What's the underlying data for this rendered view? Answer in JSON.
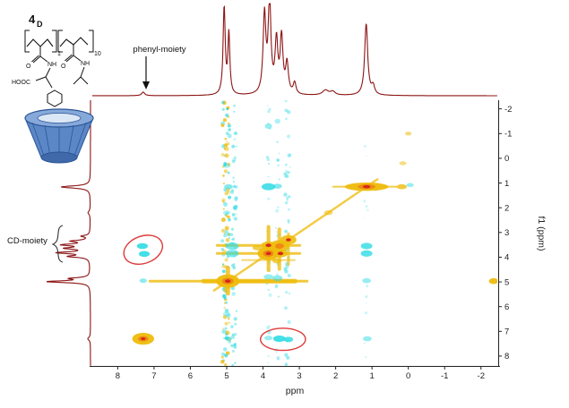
{
  "annotations": {
    "phenyl_label": "phenyl-moiety",
    "cd_label": "CD-moiety"
  },
  "structure": {
    "compound_number": "4",
    "compound_sub": "D",
    "bracket_sub_1": "1",
    "bracket_sub_2": "10",
    "hooc": "HOOC",
    "o1": "O",
    "nh1": "NH",
    "o2": "O",
    "nh2": "NH"
  },
  "colors": {
    "trace": "#8c1414",
    "axis": "#222222",
    "cyan": "#2fdbe4",
    "yellow": "#eebc0c",
    "orange": "#ef8a10",
    "red": "#d42a1c",
    "highlight": "#dd3b3b",
    "annotation": "#111111",
    "cd_fill": "#5b87c7",
    "cd_dark": "#2c5698",
    "cd_light": "#86a9da",
    "cd_bottom": "#3f69a8"
  },
  "chart_data": {
    "type": "heatmap",
    "subtype": "2D NOESY NMR spectrum with 1D proton projections",
    "x_label": "ppm",
    "y_label": "f1 (ppm)",
    "x_ticks": [
      8,
      7,
      6,
      5,
      4,
      3,
      2,
      1,
      0,
      -1,
      -2
    ],
    "y_ticks": [
      -2,
      -1,
      0,
      1,
      2,
      3,
      4,
      5,
      6,
      7,
      8
    ],
    "x_range": [
      8.7,
      -2.45
    ],
    "y_range": [
      -2.35,
      8.4
    ],
    "top_spectrum_peaks": [
      [
        7.3,
        0.05,
        0.05
      ],
      [
        5.07,
        1.22,
        0.035
      ],
      [
        4.94,
        0.85,
        0.032
      ],
      [
        3.96,
        1.1,
        0.045
      ],
      [
        3.82,
        1.28,
        0.045
      ],
      [
        3.63,
        0.72,
        0.045
      ],
      [
        3.49,
        0.78,
        0.045
      ],
      [
        3.34,
        0.42,
        0.045
      ],
      [
        3.13,
        0.16,
        0.045
      ],
      [
        2.28,
        0.07,
        0.1
      ],
      [
        2.08,
        0.05,
        0.08
      ],
      [
        1.16,
        1.0,
        0.05
      ],
      [
        0.97,
        0.12,
        0.05
      ]
    ],
    "left_spectrum_peaks": [
      [
        7.3,
        0.06,
        0.07
      ],
      [
        4.99,
        0.95,
        0.045
      ],
      [
        4.86,
        0.4,
        0.04
      ],
      [
        3.97,
        0.45,
        0.045
      ],
      [
        3.82,
        0.7,
        0.045
      ],
      [
        3.64,
        0.5,
        0.045
      ],
      [
        3.5,
        0.58,
        0.045
      ],
      [
        3.35,
        0.38,
        0.045
      ],
      [
        3.15,
        0.18,
        0.04
      ],
      [
        2.2,
        0.05,
        0.08
      ],
      [
        1.16,
        0.65,
        0.055
      ]
    ],
    "diagonal": {
      "from": 0.85,
      "to": 5.35,
      "width": 2.5,
      "color": "yellow",
      "alpha": 0.75
    },
    "noise_columns": [
      {
        "x": 5.02,
        "spread": 0.1,
        "count": 120,
        "colors": [
          "cyan",
          "yellow"
        ],
        "alpha": 0.85,
        "size": 2.2
      },
      {
        "x": 4.8,
        "spread": 0.07,
        "count": 55,
        "colors": [
          "cyan"
        ],
        "alpha": 0.6,
        "size": 2
      },
      {
        "x": 3.32,
        "spread": 0.07,
        "count": 42,
        "colors": [
          "cyan"
        ],
        "alpha": 0.55,
        "size": 2
      },
      {
        "x": 3.6,
        "spread": 0.05,
        "count": 22,
        "colors": [
          "cyan"
        ],
        "alpha": 0.45,
        "size": 1.8
      },
      {
        "x": 3.85,
        "spread": 0.05,
        "count": 22,
        "colors": [
          "cyan"
        ],
        "alpha": 0.45,
        "size": 1.8
      },
      {
        "x": 1.16,
        "spread": 0.05,
        "count": 12,
        "colors": [
          "cyan"
        ],
        "alpha": 0.3,
        "size": 1.6
      }
    ],
    "streaks": [
      {
        "dir": "h",
        "at": 4.97,
        "from": 7.15,
        "to": 2.75,
        "half": 0.055,
        "color": "yellow",
        "alpha": 0.8
      },
      {
        "dir": "h",
        "at": 4.97,
        "from": 5.7,
        "to": 3.05,
        "half": 0.09,
        "color": "yellow",
        "alpha": 0.85
      },
      {
        "dir": "h",
        "at": 3.52,
        "from": 5.3,
        "to": 2.95,
        "half": 0.055,
        "color": "yellow",
        "alpha": 0.8
      },
      {
        "dir": "h",
        "at": 3.85,
        "from": 5.3,
        "to": 2.95,
        "half": 0.055,
        "color": "yellow",
        "alpha": 0.8
      },
      {
        "dir": "h",
        "at": 4.12,
        "from": 4.6,
        "to": 3.1,
        "half": 0.04,
        "color": "yellow",
        "alpha": 0.55
      },
      {
        "dir": "h",
        "at": 1.15,
        "from": 2.1,
        "to": 0.3,
        "half": 0.04,
        "color": "yellow",
        "alpha": 0.7
      },
      {
        "dir": "v",
        "at": 3.85,
        "from": 2.7,
        "to": 4.6,
        "half": 0.05,
        "color": "yellow",
        "alpha": 0.8
      },
      {
        "dir": "v",
        "at": 3.55,
        "from": 2.8,
        "to": 4.55,
        "half": 0.05,
        "color": "yellow",
        "alpha": 0.75
      },
      {
        "dir": "v",
        "at": 3.3,
        "from": 3.0,
        "to": 4.35,
        "half": 0.04,
        "color": "yellow",
        "alpha": 0.65
      },
      {
        "dir": "v",
        "at": 4.97,
        "from": 4.35,
        "to": 5.55,
        "half": 0.06,
        "color": "yellow",
        "alpha": 0.8
      }
    ],
    "peaks_2d": [
      [
        7.3,
        7.3,
        0.3,
        0.24,
        "yellow",
        0.95
      ],
      [
        7.3,
        7.3,
        0.14,
        0.11,
        "orange",
        1
      ],
      [
        7.3,
        7.3,
        0.065,
        0.055,
        "red",
        1
      ],
      [
        4.97,
        4.97,
        0.32,
        0.27,
        "yellow",
        0.95
      ],
      [
        4.97,
        4.97,
        0.16,
        0.13,
        "orange",
        1
      ],
      [
        4.97,
        4.97,
        0.08,
        0.07,
        "red",
        1
      ],
      [
        3.85,
        3.85,
        0.3,
        0.27,
        "yellow",
        0.95
      ],
      [
        3.85,
        3.85,
        0.15,
        0.13,
        "orange",
        1
      ],
      [
        3.85,
        3.85,
        0.075,
        0.065,
        "red",
        1
      ],
      [
        3.55,
        3.55,
        0.27,
        0.24,
        "yellow",
        0.9
      ],
      [
        3.55,
        3.55,
        0.13,
        0.11,
        "orange",
        1
      ],
      [
        3.3,
        3.3,
        0.22,
        0.19,
        "yellow",
        0.9
      ],
      [
        3.3,
        3.3,
        0.07,
        0.06,
        "red",
        1
      ],
      [
        3.85,
        3.52,
        0.2,
        0.16,
        "yellow",
        0.9
      ],
      [
        3.85,
        3.52,
        0.08,
        0.07,
        "red",
        1
      ],
      [
        3.52,
        3.85,
        0.2,
        0.16,
        "yellow",
        0.9
      ],
      [
        3.52,
        3.85,
        0.08,
        0.07,
        "red",
        1
      ],
      [
        4.15,
        3.62,
        0.14,
        0.11,
        "yellow",
        0.75
      ],
      [
        3.62,
        4.15,
        0.12,
        0.1,
        "yellow",
        0.7
      ],
      [
        1.15,
        1.15,
        0.6,
        0.17,
        "yellow",
        0.95
      ],
      [
        1.15,
        1.15,
        0.24,
        0.1,
        "orange",
        1
      ],
      [
        1.15,
        1.15,
        0.1,
        0.06,
        "red",
        1
      ],
      [
        2.2,
        2.2,
        0.12,
        0.1,
        "yellow",
        0.55
      ],
      [
        0.18,
        1.15,
        0.14,
        0.1,
        "yellow",
        0.8
      ],
      [
        0.15,
        0.2,
        0.1,
        0.08,
        "yellow",
        0.5
      ],
      [
        -2.35,
        4.97,
        0.13,
        0.12,
        "yellow",
        0.95
      ],
      [
        0.0,
        -1.0,
        0.09,
        0.08,
        "yellow",
        0.55
      ],
      [
        7.32,
        3.55,
        0.15,
        0.12,
        "cyan",
        0.9
      ],
      [
        7.27,
        3.87,
        0.15,
        0.12,
        "cyan",
        0.9
      ],
      [
        7.3,
        4.95,
        0.1,
        0.09,
        "cyan",
        0.55
      ],
      [
        3.55,
        7.3,
        0.17,
        0.13,
        "cyan",
        0.9
      ],
      [
        3.3,
        7.33,
        0.13,
        0.11,
        "cyan",
        0.85
      ],
      [
        3.85,
        7.27,
        0.11,
        0.09,
        "cyan",
        0.5
      ],
      [
        3.85,
        1.15,
        0.19,
        0.14,
        "cyan",
        0.85
      ],
      [
        3.6,
        1.13,
        0.12,
        0.1,
        "cyan",
        0.6
      ],
      [
        1.15,
        3.55,
        0.16,
        0.13,
        "cyan",
        0.8
      ],
      [
        1.15,
        3.85,
        0.16,
        0.13,
        "cyan",
        0.8
      ],
      [
        1.15,
        4.95,
        0.12,
        0.1,
        "cyan",
        0.5
      ],
      [
        1.13,
        7.3,
        0.12,
        0.1,
        "cyan",
        0.5
      ],
      [
        4.85,
        3.55,
        0.18,
        0.15,
        "cyan",
        0.65
      ],
      [
        4.85,
        3.85,
        0.18,
        0.15,
        "cyan",
        0.65
      ],
      [
        3.6,
        4.85,
        0.14,
        0.12,
        "cyan",
        0.55
      ],
      [
        3.85,
        4.8,
        0.13,
        0.11,
        "cyan",
        0.5
      ],
      [
        4.95,
        1.15,
        0.12,
        0.1,
        "cyan",
        0.6
      ],
      [
        4.95,
        7.3,
        0.1,
        0.09,
        "cyan",
        0.5
      ],
      [
        3.85,
        -1.3,
        0.1,
        0.11,
        "cyan",
        0.5
      ],
      [
        3.6,
        -1.5,
        0.08,
        0.1,
        "cyan",
        0.4
      ],
      [
        -0.05,
        1.08,
        0.1,
        0.08,
        "cyan",
        0.5
      ],
      [
        5.0,
        0.3,
        0.1,
        0.09,
        "cyan",
        0.4
      ],
      [
        5.0,
        2.2,
        0.1,
        0.09,
        "cyan",
        0.4
      ],
      [
        5.0,
        6.3,
        0.1,
        0.09,
        "cyan",
        0.4
      ]
    ],
    "highlight_ellipses": [
      {
        "x": 7.3,
        "y": 3.7,
        "rx": 0.55,
        "ry": 0.55,
        "rot": -20
      },
      {
        "x": 3.45,
        "y": 7.32,
        "rx": 0.62,
        "ry": 0.45,
        "rot": 0
      }
    ]
  }
}
